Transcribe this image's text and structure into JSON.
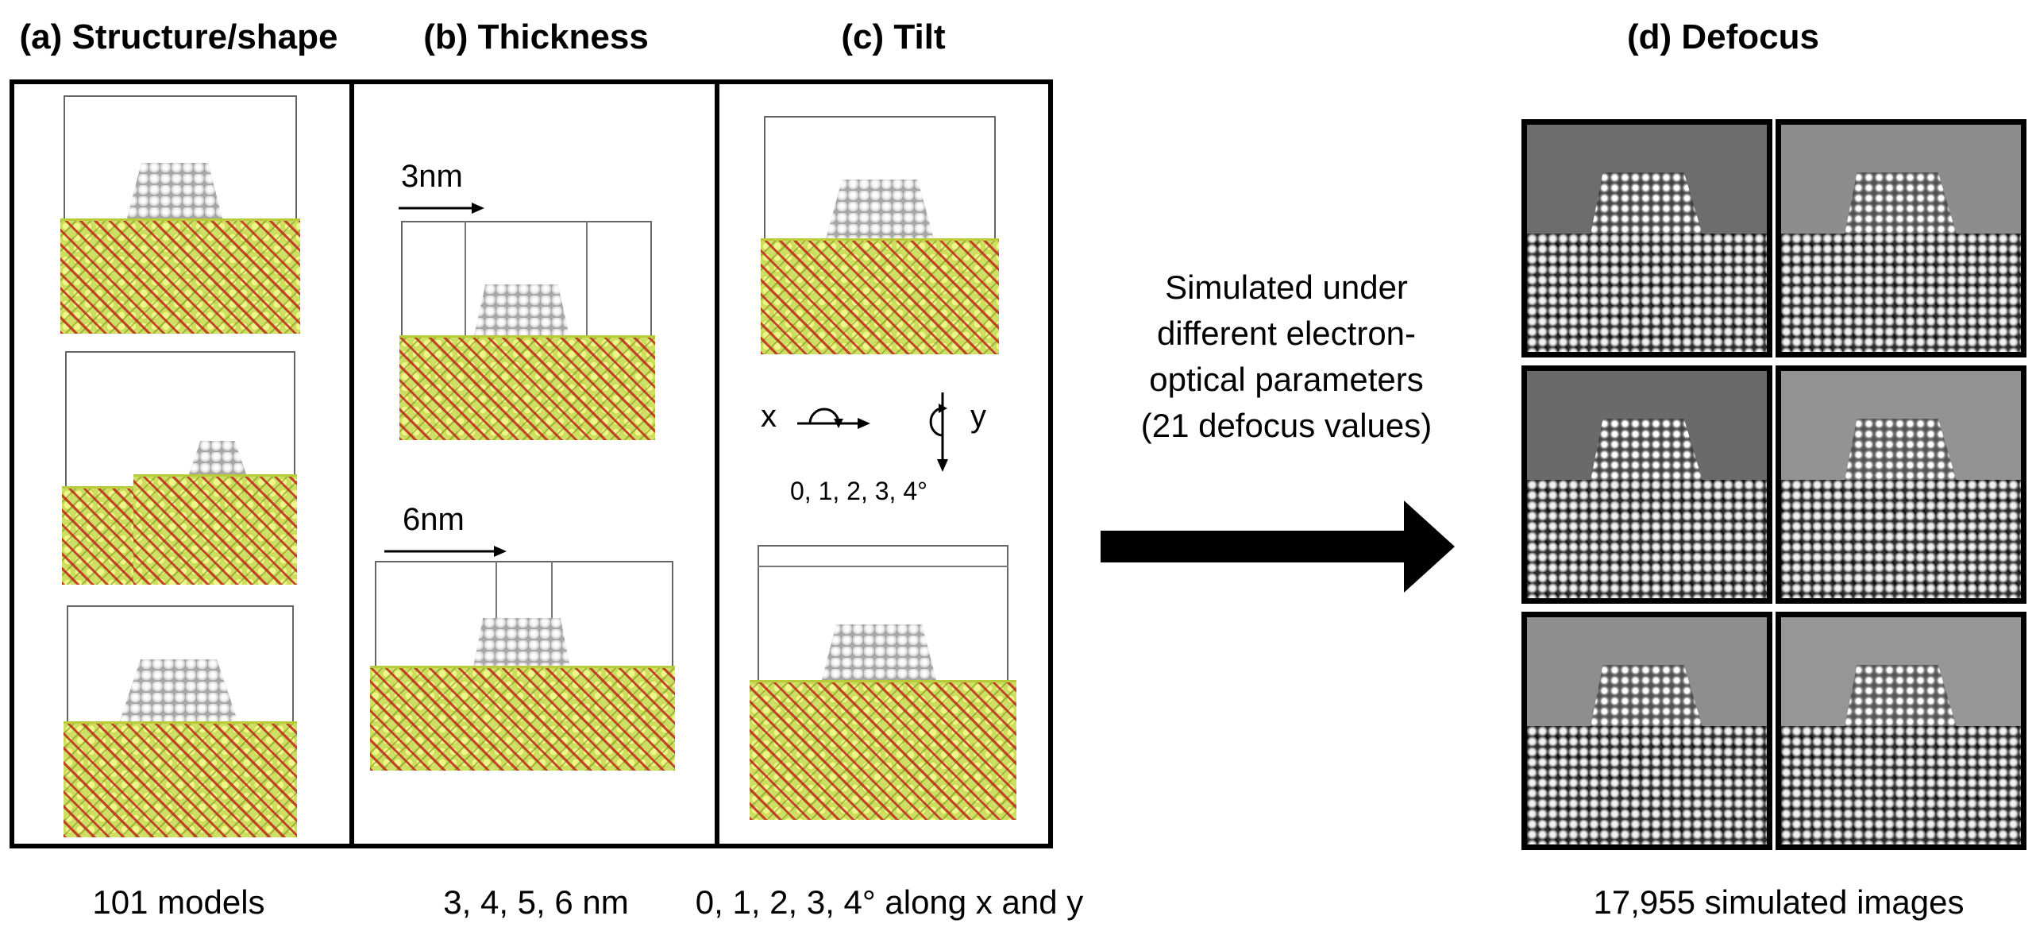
{
  "panels": [
    {
      "title": "(a) Structure/shape",
      "caption": "101 models"
    },
    {
      "title": "(b) Thickness",
      "caption": "3, 4, 5, 6 nm"
    },
    {
      "title": "(c) Tilt",
      "caption": "0, 1, 2, 3, 4° along x and y"
    },
    {
      "title": "(d) Defocus",
      "caption": "17,955 simulated images"
    }
  ],
  "thickness_labels": [
    "3nm",
    "6nm"
  ],
  "tilt": {
    "axis_x": "x",
    "axis_y": "y",
    "angles": "0, 1, 2, 3, 4°"
  },
  "arrow_text": [
    "Simulated under",
    "different electron-",
    "optical parameters",
    "(21 defocus values)"
  ],
  "colors": {
    "support": "#cfe06a",
    "oxygen": "#c0281e",
    "metal": "#d8d8d8",
    "frame": "#000000"
  }
}
